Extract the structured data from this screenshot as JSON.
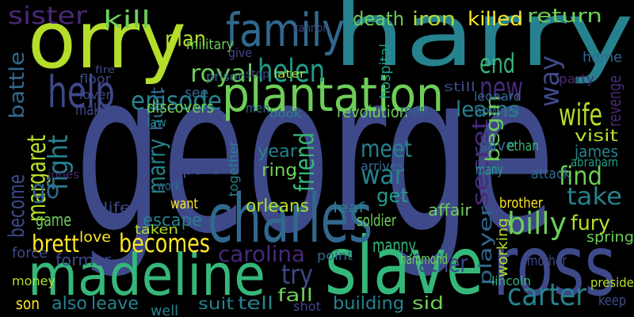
{
  "words": [
    "george",
    "harry",
    "orry",
    "slave",
    "madeline",
    "ross",
    "charles",
    "plantation",
    "family",
    "help",
    "episode",
    "kill",
    "sister",
    "plan",
    "royal",
    "helen",
    "new",
    "end",
    "return",
    "killed",
    "death",
    "iron",
    "way",
    "wife",
    "revenge",
    "learns",
    "friend",
    "meet",
    "war",
    "find",
    "take",
    "visit",
    "james",
    "billy",
    "fury",
    "carter",
    "father",
    "carolina",
    "try",
    "becomes",
    "brett",
    "margaret",
    "fight",
    "become",
    "go",
    "battle",
    "make",
    "former",
    "son",
    "also",
    "leave",
    "tell",
    "fall",
    "building",
    "sid",
    "suit",
    "well",
    "shot",
    "marry",
    "escape",
    "game",
    "year",
    "ring",
    "part",
    "orleans",
    "leaf",
    "soldier",
    "affair",
    "manny",
    "hammond",
    "player",
    "lincoln",
    "president",
    "mother",
    "spring",
    "secret",
    "get",
    "begin",
    "save",
    "home",
    "hunt",
    "military",
    "stop",
    "later",
    "prison",
    "men",
    "book",
    "discovers",
    "revolution",
    "man",
    "law",
    "see",
    "love",
    "force",
    "money",
    "together",
    "taken",
    "want",
    "life",
    "attack",
    "brother",
    "abraham",
    "ethan",
    "many",
    "working",
    "keep",
    "point",
    "party",
    "leonard",
    "howard",
    "still",
    "floor",
    "lover",
    "jones",
    "work",
    "fire",
    "give",
    "cannon",
    "hospital",
    "arrives"
  ]
}
